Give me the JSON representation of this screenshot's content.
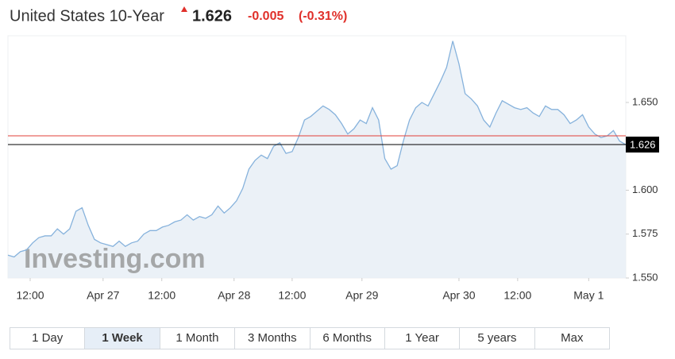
{
  "header": {
    "title": "United States 10-Year",
    "price": "1.626",
    "change": "-0.005",
    "change_pct": "(-0.31%)"
  },
  "chart_data": {
    "type": "area",
    "watermark": "Investing.com",
    "x": [
      0,
      1,
      2,
      3,
      4,
      5,
      6,
      7,
      8,
      9,
      10,
      11,
      12,
      13,
      14,
      15,
      16,
      17,
      18,
      19,
      20,
      21,
      22,
      23,
      24,
      25,
      26,
      27,
      28,
      29,
      30,
      31,
      32,
      33,
      34,
      35,
      36,
      37,
      38,
      39,
      40,
      41,
      42,
      43,
      44,
      45,
      46,
      47,
      48,
      49,
      50,
      51,
      52,
      53,
      54,
      55,
      56,
      57,
      58,
      59,
      60,
      61,
      62,
      63,
      64,
      65,
      66,
      67,
      68,
      69,
      70,
      71,
      72,
      73,
      74,
      75,
      76,
      77,
      78,
      79,
      80,
      81,
      82,
      83,
      84,
      85,
      86,
      87,
      88,
      89,
      90,
      91,
      92,
      93,
      94,
      95,
      96,
      97,
      98,
      99,
      100
    ],
    "series": [
      {
        "name": "United States 10-Year",
        "color": "#86b2dc",
        "fill": "#e7eef6",
        "values": [
          1.563,
          1.562,
          1.565,
          1.566,
          1.57,
          1.573,
          1.574,
          1.574,
          1.578,
          1.575,
          1.578,
          1.588,
          1.59,
          1.58,
          1.572,
          1.57,
          1.569,
          1.568,
          1.571,
          1.568,
          1.57,
          1.571,
          1.575,
          1.577,
          1.577,
          1.579,
          1.58,
          1.582,
          1.583,
          1.586,
          1.583,
          1.585,
          1.584,
          1.586,
          1.591,
          1.587,
          1.59,
          1.594,
          1.601,
          1.612,
          1.617,
          1.62,
          1.618,
          1.625,
          1.627,
          1.621,
          1.622,
          1.63,
          1.64,
          1.642,
          1.645,
          1.648,
          1.646,
          1.643,
          1.638,
          1.632,
          1.635,
          1.64,
          1.638,
          1.647,
          1.64,
          1.618,
          1.612,
          1.614,
          1.628,
          1.64,
          1.647,
          1.65,
          1.648,
          1.655,
          1.662,
          1.67,
          1.685,
          1.672,
          1.655,
          1.652,
          1.648,
          1.64,
          1.636,
          1.644,
          1.651,
          1.649,
          1.647,
          1.646,
          1.647,
          1.644,
          1.642,
          1.648,
          1.646,
          1.646,
          1.643,
          1.638,
          1.64,
          1.643,
          1.636,
          1.632,
          1.63,
          1.631,
          1.634,
          1.628,
          1.626
        ]
      }
    ],
    "xlim": [
      0,
      100
    ],
    "xticks": [
      {
        "value": 3.6,
        "label": "12:00"
      },
      {
        "value": 15.4,
        "label": "Apr 27"
      },
      {
        "value": 24.9,
        "label": "12:00"
      },
      {
        "value": 36.6,
        "label": "Apr 28"
      },
      {
        "value": 46,
        "label": "12:00"
      },
      {
        "value": 57.3,
        "label": "Apr 29"
      },
      {
        "value": 73,
        "label": "Apr 30"
      },
      {
        "value": 82.5,
        "label": "12:00"
      },
      {
        "value": 94,
        "label": "May 1"
      }
    ],
    "ylim": [
      1.55,
      1.688
    ],
    "yticks": [
      {
        "value": 1.55,
        "label": "1.550"
      },
      {
        "value": 1.575,
        "label": "1.575"
      },
      {
        "value": 1.6,
        "label": "1.600"
      },
      {
        "value": 1.65,
        "label": "1.650"
      }
    ],
    "previous_close": 1.631,
    "previous_close_color": "#e0403a",
    "last_price": 1.626,
    "last_price_color": "#000000"
  },
  "ranges": {
    "items": [
      "1 Day",
      "1 Week",
      "1 Month",
      "3 Months",
      "6 Months",
      "1 Year",
      "5 years",
      "Max"
    ],
    "active": 1
  }
}
